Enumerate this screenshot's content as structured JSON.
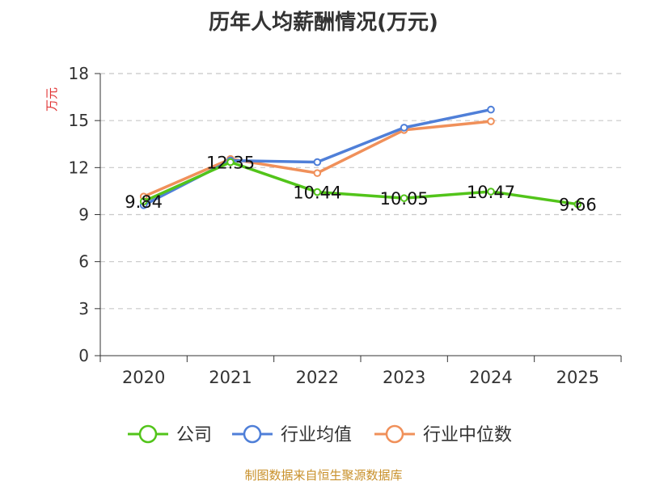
{
  "chart_data": {
    "type": "line",
    "title": "历年人均薪酬情况(万元)",
    "ylabel": "万元",
    "xlabel": "",
    "categories": [
      "2020",
      "2021",
      "2022",
      "2023",
      "2024",
      "2025"
    ],
    "ylim": [
      0,
      18
    ],
    "yticks": [
      0,
      3,
      6,
      9,
      12,
      15,
      18
    ],
    "grid": true,
    "legend_position": "bottom",
    "series": [
      {
        "name": "公司",
        "color": "#52c41a",
        "values": [
          9.84,
          12.35,
          10.44,
          10.05,
          10.47,
          9.66
        ],
        "labels": [
          "9.84",
          "12.35",
          "10.44",
          "10.05",
          "10.47",
          "9.66"
        ]
      },
      {
        "name": "行业均值",
        "color": "#4f7fd8",
        "values": [
          9.6,
          12.45,
          12.35,
          14.55,
          15.7,
          null
        ],
        "labels": []
      },
      {
        "name": "行业中位数",
        "color": "#f0905a",
        "values": [
          10.15,
          12.55,
          11.65,
          14.4,
          14.95,
          null
        ],
        "labels": []
      }
    ]
  },
  "footer": {
    "source": "制图数据来自恒生聚源数据库"
  }
}
